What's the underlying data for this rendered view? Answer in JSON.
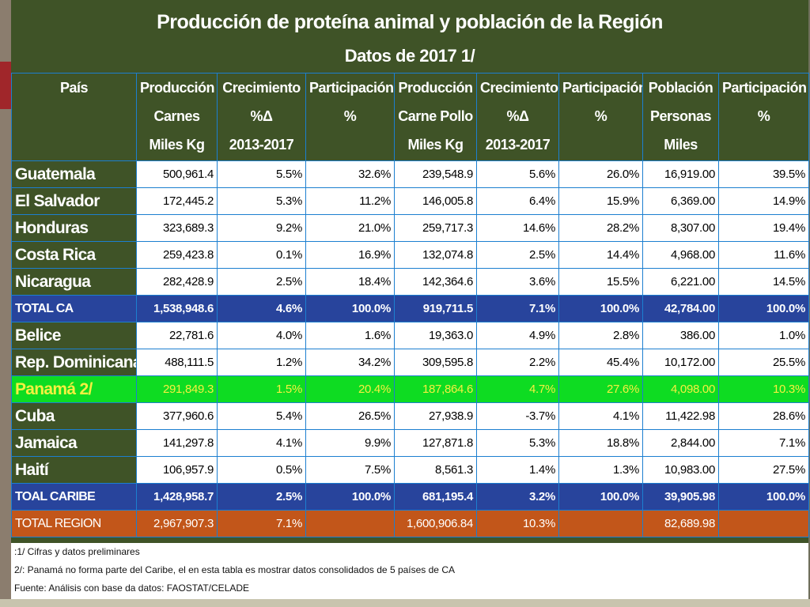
{
  "title": "Producción de proteína animal y población de la Región",
  "subtitle": "Datos de 2017 1/",
  "headers": [
    [
      "País"
    ],
    [
      "Producción",
      "Carnes",
      "Miles Kg"
    ],
    [
      "Crecimiento",
      "%Δ",
      "2013-2017"
    ],
    [
      "Participación",
      "%"
    ],
    [
      "Producción",
      "Carne Pollo",
      "Miles Kg"
    ],
    [
      "Crecimiento",
      "%Δ",
      "2013-2017"
    ],
    [
      "Participación",
      "%"
    ],
    [
      "Población",
      "Personas",
      "Miles"
    ],
    [
      "Participación",
      "%"
    ]
  ],
  "rows": [
    {
      "type": "normal",
      "cells": [
        "Guatemala",
        "500,961.4",
        "5.5%",
        "32.6%",
        "239,548.9",
        "5.6%",
        "26.0%",
        "16,919.00",
        "39.5%"
      ]
    },
    {
      "type": "normal",
      "cells": [
        "El Salvador",
        "172,445.2",
        "5.3%",
        "11.2%",
        "146,005.8",
        "6.4%",
        "15.9%",
        "6,369.00",
        "14.9%"
      ]
    },
    {
      "type": "normal",
      "cells": [
        "Honduras",
        "323,689.3",
        "9.2%",
        "21.0%",
        "259,717.3",
        "14.6%",
        "28.2%",
        "8,307.00",
        "19.4%"
      ]
    },
    {
      "type": "normal",
      "cells": [
        "Costa Rica",
        "259,423.8",
        "0.1%",
        "16.9%",
        "132,074.8",
        "2.5%",
        "14.4%",
        "4,968.00",
        "11.6%"
      ]
    },
    {
      "type": "normal",
      "cells": [
        "Nicaragua",
        "282,428.9",
        "2.5%",
        "18.4%",
        "142,364.6",
        "3.6%",
        "15.5%",
        "6,221.00",
        "14.5%"
      ]
    },
    {
      "type": "total",
      "cells": [
        "TOTAL CA",
        "1,538,948.6",
        "4.6%",
        "100.0%",
        "919,711.5",
        "7.1%",
        "100.0%",
        "42,784.00",
        "100.0%"
      ]
    },
    {
      "type": "normal",
      "cells": [
        "Belice",
        "22,781.6",
        "4.0%",
        "1.6%",
        "19,363.0",
        "4.9%",
        "2.8%",
        "386.00",
        "1.0%"
      ]
    },
    {
      "type": "normal",
      "cells": [
        "Rep. Dominicana",
        "488,111.5",
        "1.2%",
        "34.2%",
        "309,595.8",
        "2.2%",
        "45.4%",
        "10,172.00",
        "25.5%"
      ]
    },
    {
      "type": "highlight",
      "cells": [
        "Panamá 2/",
        "291,849.3",
        "1.5%",
        "20.4%",
        "187,864.6",
        "4.7%",
        "27.6%",
        "4,098.00",
        "10.3%"
      ]
    },
    {
      "type": "normal",
      "cells": [
        "Cuba",
        "377,960.6",
        "5.4%",
        "26.5%",
        "27,938.9",
        "-3.7%",
        "4.1%",
        "11,422.98",
        "28.6%"
      ]
    },
    {
      "type": "normal",
      "cells": [
        "Jamaica",
        "141,297.8",
        "4.1%",
        "9.9%",
        "127,871.8",
        "5.3%",
        "18.8%",
        "2,844.00",
        "7.1%"
      ]
    },
    {
      "type": "normal",
      "cells": [
        "Haití",
        "106,957.9",
        "0.5%",
        "7.5%",
        "8,561.3",
        "1.4%",
        "1.3%",
        "10,983.00",
        "27.5%"
      ]
    },
    {
      "type": "total",
      "cells": [
        "TOAL CARIBE",
        "1,428,958.7",
        "2.5%",
        "100.0%",
        "681,195.4",
        "3.2%",
        "100.0%",
        "39,905.98",
        "100.0%"
      ]
    },
    {
      "type": "region",
      "cells": [
        "TOTAL REGION",
        "2,967,907.3",
        "7.1%",
        "",
        "1,600,906.84",
        "10.3%",
        "",
        "82,689.98",
        ""
      ]
    }
  ],
  "notes": [
    ":1/ Cifras y datos preliminares",
    "2/: Panamá no forma parte del Caribe, el en esta tabla es mostrar datos consolidados de 5 países de CA",
    "Fuente: Análisis con base da datos: FAOSTAT/CELADE"
  ],
  "colors": {
    "frame": "#3f5327",
    "total_row": "#28449c",
    "highlight_row": "#0edc22",
    "highlight_text": "#f5f040",
    "region_row": "#c2561a",
    "grid": "#1c7fd0"
  }
}
